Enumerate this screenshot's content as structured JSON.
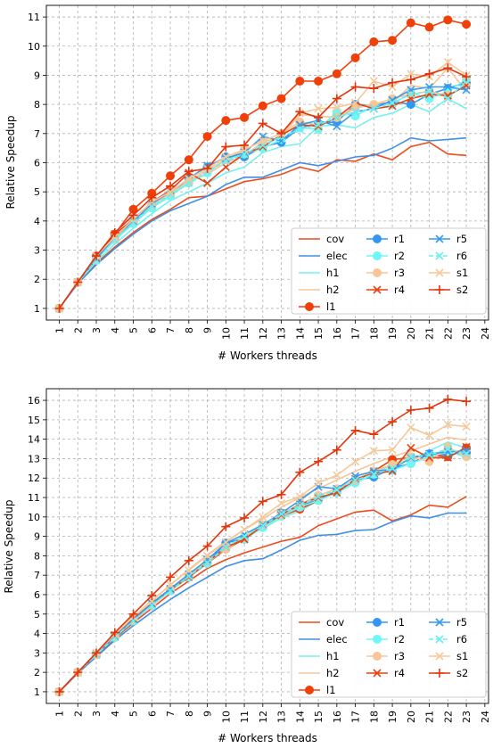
{
  "colors": {
    "cov": "#ee4b1c",
    "elec": "#3f8fe6",
    "h1": "#76f0f0",
    "h2": "#f5c59a",
    "l1": "#f0400a",
    "r1": "#3396f0",
    "r2": "#6ff6f6",
    "r3": "#f8c696",
    "r4": "#e8420f",
    "r5": "#3a9aec",
    "r6": "#66f0f4",
    "s1": "#f6c99a",
    "s2": "#e2350c"
  },
  "chart_data": [
    {
      "type": "line",
      "xlabel": "# Workers threads",
      "ylabel": "Relative Speedup",
      "xlim": [
        0.3,
        24.2
      ],
      "ylim": [
        0.6,
        11.4
      ],
      "xticks": [
        "1",
        "2",
        "3",
        "4",
        "5",
        "6",
        "7",
        "8",
        "9",
        "10",
        "11",
        "12",
        "13",
        "14",
        "15",
        "16",
        "17",
        "18",
        "19",
        "20",
        "21",
        "22",
        "23",
        "24"
      ],
      "yticks": [
        "1",
        "2",
        "3",
        "4",
        "5",
        "6",
        "7",
        "8",
        "9",
        "10",
        "11"
      ],
      "grid": true,
      "legend_position": "lower-right",
      "x": [
        1,
        2,
        3,
        4,
        5,
        6,
        7,
        8,
        9,
        10,
        11,
        12,
        13,
        14,
        15,
        16,
        17,
        18,
        19,
        20,
        21,
        22,
        23
      ],
      "series": [
        {
          "name": "cov",
          "marker": "none",
          "values": [
            1,
            1.9,
            2.55,
            3.1,
            3.6,
            4.05,
            4.4,
            4.8,
            4.85,
            5.1,
            5.35,
            5.45,
            5.6,
            5.85,
            5.7,
            6.1,
            6.05,
            6.3,
            6.1,
            6.55,
            6.7,
            6.3,
            6.25
          ]
        },
        {
          "name": "elec",
          "marker": "none",
          "values": [
            1,
            1.85,
            2.5,
            3.05,
            3.55,
            4.0,
            4.35,
            4.6,
            4.85,
            5.25,
            5.5,
            5.5,
            5.75,
            6.0,
            5.9,
            6.05,
            6.2,
            6.25,
            6.5,
            6.85,
            6.75,
            6.8,
            6.85
          ]
        },
        {
          "name": "h1",
          "marker": "none",
          "values": [
            1,
            1.9,
            2.6,
            3.2,
            3.75,
            4.25,
            4.7,
            5.0,
            5.3,
            5.65,
            5.85,
            6.35,
            6.55,
            6.65,
            7.25,
            7.3,
            7.2,
            7.55,
            7.7,
            8.0,
            7.75,
            8.2,
            7.85
          ]
        },
        {
          "name": "h2",
          "marker": "none",
          "values": [
            1,
            1.9,
            2.7,
            3.4,
            4.0,
            4.5,
            4.85,
            5.35,
            5.6,
            6.0,
            6.25,
            6.7,
            6.9,
            7.65,
            7.6,
            7.55,
            7.85,
            8.05,
            8.05,
            8.65,
            8.55,
            9.25,
            8.45
          ]
        },
        {
          "name": "l1",
          "marker": "dot",
          "values": [
            1,
            1.9,
            2.8,
            3.55,
            4.4,
            4.95,
            5.55,
            6.1,
            6.9,
            7.45,
            7.55,
            7.95,
            8.2,
            8.8,
            8.8,
            9.05,
            9.6,
            10.15,
            10.2,
            10.8,
            10.65,
            10.9,
            10.75
          ]
        },
        {
          "name": "r1",
          "marker": "dot",
          "values": [
            1,
            1.9,
            2.7,
            3.4,
            3.95,
            4.55,
            4.95,
            5.45,
            5.85,
            6.2,
            6.2,
            6.55,
            6.7,
            7.2,
            7.35,
            7.4,
            8.0,
            7.95,
            8.1,
            8.0,
            8.35,
            8.55,
            8.75
          ]
        },
        {
          "name": "r2",
          "marker": "dot",
          "values": [
            1,
            1.9,
            2.65,
            3.35,
            3.9,
            4.45,
            4.85,
            5.3,
            5.65,
            6.1,
            6.3,
            6.5,
            6.8,
            7.2,
            7.15,
            7.75,
            7.6,
            7.95,
            8.0,
            8.4,
            8.2,
            8.45,
            8.85
          ]
        },
        {
          "name": "r3",
          "marker": "dot",
          "values": [
            1,
            1.9,
            2.7,
            3.4,
            4.0,
            4.55,
            4.95,
            5.35,
            5.75,
            6.1,
            6.45,
            6.75,
            7.0,
            7.4,
            7.3,
            7.55,
            7.9,
            8.0,
            8.2,
            8.35,
            8.45,
            8.3,
            8.65
          ]
        },
        {
          "name": "r4",
          "marker": "x",
          "values": [
            1,
            1.9,
            2.75,
            3.55,
            4.05,
            4.65,
            5.05,
            5.65,
            5.3,
            5.85,
            6.3,
            6.55,
            6.95,
            7.3,
            7.25,
            7.55,
            8.05,
            7.85,
            7.95,
            8.2,
            8.35,
            8.3,
            8.65
          ]
        },
        {
          "name": "r5",
          "marker": "x",
          "values": [
            1,
            1.9,
            2.7,
            3.45,
            4.0,
            4.6,
            5.0,
            5.45,
            5.9,
            6.15,
            6.35,
            6.9,
            6.75,
            7.3,
            7.45,
            7.25,
            7.75,
            7.85,
            8.15,
            8.5,
            8.6,
            8.6,
            8.5
          ]
        },
        {
          "name": "r6",
          "marker": "x",
          "dashed": true,
          "values": [
            1,
            1.9,
            2.65,
            3.35,
            3.95,
            4.5,
            4.9,
            5.3,
            5.7,
            6.05,
            6.3,
            6.6,
            6.9,
            7.15,
            7.3,
            7.55,
            7.75,
            7.85,
            8.05,
            8.35,
            8.45,
            8.2,
            8.8
          ]
        },
        {
          "name": "s1",
          "marker": "x",
          "values": [
            1,
            1.9,
            2.8,
            3.45,
            4.05,
            4.65,
            5.0,
            5.45,
            5.8,
            6.2,
            6.45,
            6.75,
            7.0,
            7.7,
            7.85,
            7.9,
            8.05,
            8.8,
            8.6,
            9.05,
            8.95,
            9.45,
            9.0
          ]
        },
        {
          "name": "s2",
          "marker": "plus",
          "values": [
            1,
            1.9,
            2.8,
            3.6,
            4.2,
            4.8,
            5.2,
            5.7,
            5.8,
            6.55,
            6.6,
            7.35,
            7.0,
            7.75,
            7.55,
            8.2,
            8.6,
            8.55,
            8.75,
            8.85,
            9.05,
            9.25,
            8.95
          ]
        }
      ]
    },
    {
      "type": "line",
      "xlabel": "# Workers threads",
      "ylabel": "Relative Speedup",
      "xlim": [
        0.3,
        24.2
      ],
      "ylim": [
        0.4,
        16.6
      ],
      "xticks": [
        "1",
        "2",
        "3",
        "4",
        "5",
        "6",
        "7",
        "8",
        "9",
        "10",
        "11",
        "12",
        "13",
        "14",
        "15",
        "16",
        "17",
        "18",
        "19",
        "20",
        "21",
        "22",
        "23",
        "24"
      ],
      "yticks": [
        "1",
        "2",
        "3",
        "4",
        "5",
        "6",
        "7",
        "8",
        "9",
        "10",
        "11",
        "12",
        "13",
        "14",
        "15",
        "16"
      ],
      "grid": true,
      "legend_position": "lower-right",
      "x": [
        1,
        2,
        3,
        4,
        5,
        6,
        7,
        8,
        9,
        10,
        11,
        12,
        13,
        14,
        15,
        16,
        17,
        18,
        19,
        20,
        21,
        22,
        23
      ],
      "series": [
        {
          "name": "cov",
          "marker": "none",
          "values": [
            1,
            1.95,
            2.85,
            3.75,
            4.55,
            5.3,
            6.05,
            6.7,
            7.35,
            7.8,
            8.15,
            8.45,
            8.75,
            8.95,
            9.55,
            9.9,
            10.25,
            10.35,
            9.8,
            10.1,
            10.6,
            10.5,
            11.05
          ]
        },
        {
          "name": "elec",
          "marker": "none",
          "values": [
            1,
            1.95,
            2.8,
            3.65,
            4.4,
            5.1,
            5.75,
            6.35,
            6.9,
            7.45,
            7.75,
            7.85,
            8.3,
            8.8,
            9.05,
            9.1,
            9.3,
            9.35,
            9.75,
            10.05,
            9.95,
            10.2,
            10.2
          ]
        },
        {
          "name": "h1",
          "marker": "none",
          "values": [
            1,
            2.0,
            2.95,
            3.85,
            4.75,
            5.55,
            6.3,
            7.05,
            7.75,
            8.45,
            8.95,
            9.4,
            9.95,
            10.3,
            10.85,
            11.4,
            11.85,
            12.3,
            12.65,
            12.95,
            13.4,
            13.85,
            13.55
          ]
        },
        {
          "name": "h2",
          "marker": "none",
          "values": [
            1,
            2.0,
            3.0,
            3.95,
            4.85,
            5.7,
            6.5,
            7.3,
            8.05,
            8.75,
            9.35,
            9.9,
            10.5,
            11.0,
            11.45,
            11.9,
            12.35,
            12.75,
            13.1,
            13.4,
            13.75,
            14.1,
            13.95
          ]
        },
        {
          "name": "l1",
          "marker": "dot",
          "values": [
            1,
            2.0,
            2.9,
            3.85,
            4.7,
            5.45,
            6.2,
            6.9,
            7.6,
            8.35,
            8.85,
            9.55,
            10.05,
            10.4,
            10.85,
            11.35,
            11.85,
            12.35,
            12.95,
            13.05,
            13.2,
            13.1,
            13.55
          ]
        },
        {
          "name": "r1",
          "marker": "dot",
          "values": [
            1,
            2.0,
            2.9,
            3.8,
            4.65,
            5.45,
            6.2,
            6.9,
            7.65,
            8.65,
            8.9,
            9.5,
            10.2,
            10.55,
            10.9,
            11.3,
            11.9,
            12.05,
            12.5,
            12.75,
            13.25,
            13.2,
            13.3
          ]
        },
        {
          "name": "r2",
          "marker": "dot",
          "values": [
            1,
            2.0,
            2.9,
            3.8,
            4.65,
            5.45,
            6.2,
            6.9,
            7.6,
            8.45,
            8.85,
            9.45,
            10.05,
            10.5,
            10.85,
            11.25,
            11.75,
            12.2,
            12.4,
            12.75,
            13.1,
            13.35,
            13.1
          ]
        },
        {
          "name": "r3",
          "marker": "dot",
          "values": [
            1,
            2.0,
            2.9,
            3.85,
            4.7,
            5.5,
            6.3,
            7.0,
            7.75,
            8.35,
            8.95,
            9.6,
            10.15,
            10.65,
            11.1,
            11.45,
            11.9,
            12.35,
            12.7,
            13.1,
            12.85,
            13.6,
            13.1
          ]
        },
        {
          "name": "r4",
          "marker": "x",
          "values": [
            1,
            2.0,
            2.9,
            3.85,
            4.75,
            5.55,
            6.25,
            6.9,
            7.65,
            8.45,
            8.85,
            9.55,
            10.1,
            10.65,
            11.0,
            11.25,
            11.95,
            12.25,
            12.35,
            13.55,
            13.05,
            13.05,
            13.6
          ]
        },
        {
          "name": "r5",
          "marker": "x",
          "values": [
            1,
            2.0,
            2.95,
            3.85,
            4.7,
            5.55,
            6.3,
            7.05,
            7.8,
            8.65,
            9.1,
            9.6,
            10.2,
            10.85,
            11.55,
            11.45,
            12.1,
            12.35,
            12.45,
            13.05,
            13.25,
            13.35,
            13.4
          ]
        },
        {
          "name": "r6",
          "marker": "x",
          "dashed": true,
          "values": [
            1,
            2.0,
            2.9,
            3.8,
            4.65,
            5.45,
            6.2,
            6.95,
            7.65,
            8.45,
            9.0,
            9.55,
            10.15,
            10.6,
            11.05,
            11.4,
            11.9,
            12.2,
            12.5,
            13.1,
            13.2,
            13.5,
            13.25
          ]
        },
        {
          "name": "s1",
          "marker": "x",
          "values": [
            1,
            2.0,
            3.0,
            3.95,
            4.85,
            5.65,
            6.5,
            7.25,
            8.0,
            8.7,
            9.35,
            10.0,
            10.7,
            11.05,
            11.75,
            12.15,
            12.85,
            13.4,
            13.45,
            14.6,
            14.2,
            14.75,
            14.65
          ]
        },
        {
          "name": "s2",
          "marker": "plus",
          "values": [
            1,
            2.0,
            3.0,
            4.05,
            5.0,
            5.95,
            6.9,
            7.75,
            8.5,
            9.5,
            9.95,
            10.8,
            11.15,
            12.3,
            12.85,
            13.45,
            14.45,
            14.25,
            14.9,
            15.5,
            15.6,
            16.05,
            15.95
          ]
        }
      ]
    }
  ]
}
